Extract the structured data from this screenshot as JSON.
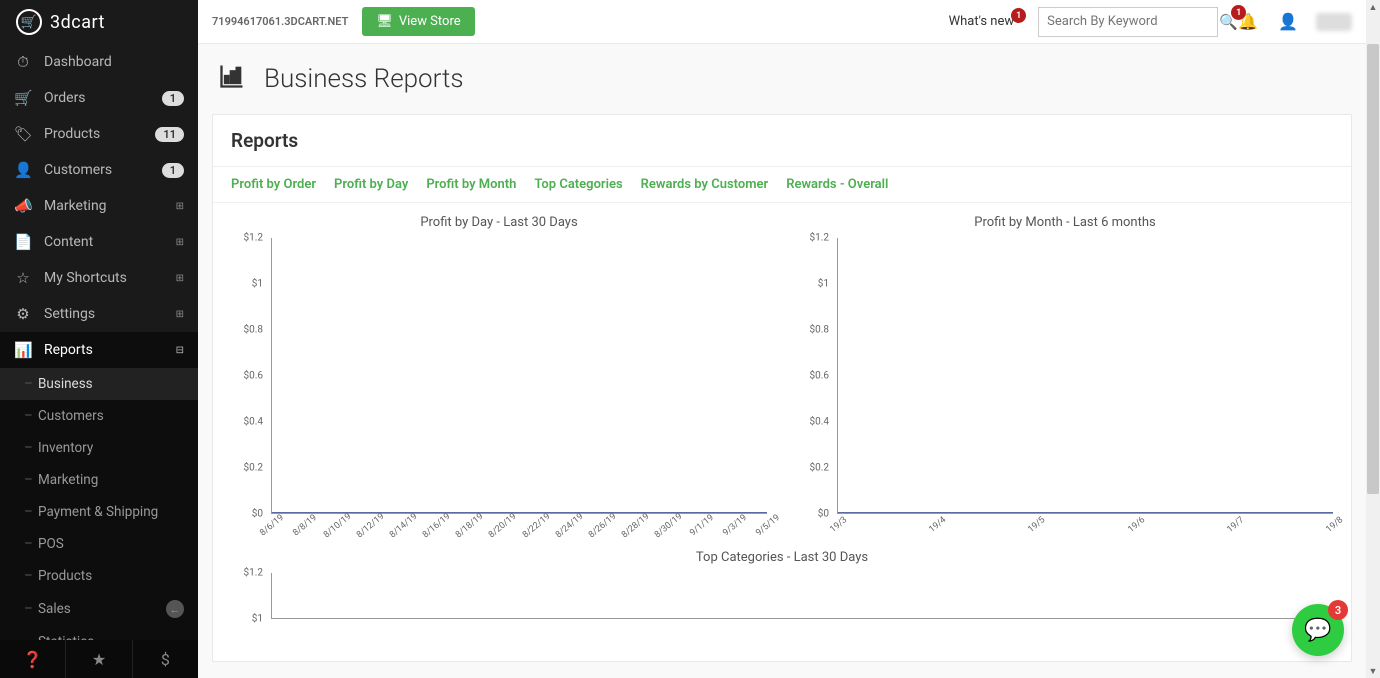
{
  "brand": "3dcart",
  "topbar": {
    "domain": "71994617061.3DCART.NET",
    "view_store": "View Store",
    "whats_new": "What's new",
    "whats_new_count": "1",
    "search_placeholder": "Search By Keyword",
    "notif_count": "1"
  },
  "sidebar": {
    "items": [
      {
        "icon": "⏱",
        "label": "Dashboard"
      },
      {
        "icon": "🛒",
        "label": "Orders",
        "badge": "1"
      },
      {
        "icon": "🏷",
        "label": "Products",
        "badge": "11"
      },
      {
        "icon": "👤",
        "label": "Customers",
        "badge": "1"
      },
      {
        "icon": "📣",
        "label": "Marketing",
        "expand": "⊞"
      },
      {
        "icon": "📄",
        "label": "Content",
        "expand": "⊞"
      },
      {
        "icon": "☆",
        "label": "My Shortcuts",
        "expand": "⊞"
      },
      {
        "icon": "⚙",
        "label": "Settings",
        "expand": "⊞"
      },
      {
        "icon": "📊",
        "label": "Reports",
        "expand": "⊟",
        "active": true
      }
    ],
    "subitems": [
      {
        "label": "Business",
        "active": true
      },
      {
        "label": "Customers"
      },
      {
        "label": "Inventory"
      },
      {
        "label": "Marketing"
      },
      {
        "label": "Payment & Shipping"
      },
      {
        "label": "POS"
      },
      {
        "label": "Products"
      },
      {
        "label": "Sales",
        "badge": "←"
      },
      {
        "label": "Statistics"
      }
    ]
  },
  "page": {
    "title": "Business Reports",
    "panel_title": "Reports",
    "tabs": [
      "Profit by Order",
      "Profit by Day",
      "Profit by Month",
      "Top Categories",
      "Rewards by Customer",
      "Rewards - Overall"
    ]
  },
  "chart1": {
    "title": "Profit by Day - Last 30 Days",
    "type": "line",
    "ylim": [
      0,
      1.2
    ],
    "yticks": [
      "$1.2",
      "$1",
      "$0.8",
      "$0.6",
      "$0.4",
      "$0.2",
      "$0"
    ],
    "xticks": [
      "8/6/19",
      "8/8/19",
      "8/10/19",
      "8/12/19",
      "8/14/19",
      "8/16/19",
      "8/18/19",
      "8/20/19",
      "8/22/19",
      "8/24/19",
      "8/26/19",
      "8/28/19",
      "8/30/19",
      "9/1/19",
      "9/3/19",
      "9/5/19"
    ],
    "series_color": "#5b6aa0",
    "axis_color": "#999999",
    "label_fontsize": 10,
    "values_flat_at": 0
  },
  "chart2": {
    "title": "Profit by Month - Last 6 months",
    "type": "line",
    "ylim": [
      0,
      1.2
    ],
    "yticks": [
      "$1.2",
      "$1",
      "$0.8",
      "$0.6",
      "$0.4",
      "$0.2",
      "$0"
    ],
    "xticks": [
      "19/3",
      "19/4",
      "19/5",
      "19/6",
      "19/7",
      "19/8"
    ],
    "series_color": "#5b6aa0",
    "axis_color": "#999999",
    "label_fontsize": 10,
    "values_flat_at": 0
  },
  "chart3": {
    "title": "Top Categories - Last 30 Days",
    "type": "line",
    "ylim": [
      0,
      1.2
    ],
    "yticks": [
      "$1.2",
      "$1"
    ],
    "series_color": "#5b6aa0",
    "axis_color": "#999999",
    "label_fontsize": 10
  },
  "chat": {
    "count": "3"
  },
  "colors": {
    "accent_green": "#4caf50",
    "badge_red": "#b71c1c",
    "sidebar_bg": "#1a1a1a",
    "chat_green": "#2ecc40",
    "chat_red": "#e53935"
  }
}
